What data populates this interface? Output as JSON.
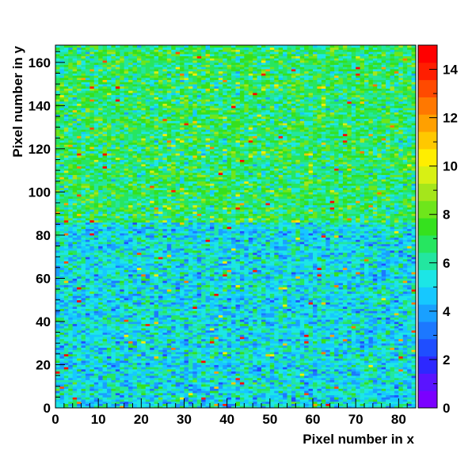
{
  "chart_data": {
    "type": "heatmap",
    "title": "",
    "xlabel": "Pixel number in x",
    "ylabel": "Pixel number in y",
    "x_range": [
      0,
      84
    ],
    "y_range": [
      0,
      168
    ],
    "x_bins": 84,
    "y_bins": 168,
    "x_ticks": [
      0,
      10,
      20,
      30,
      40,
      50,
      60,
      70,
      80
    ],
    "y_ticks": [
      0,
      20,
      40,
      60,
      80,
      100,
      120,
      140,
      160
    ],
    "z_range": [
      0,
      15
    ],
    "colorbar_ticks": [
      0,
      2,
      4,
      6,
      8,
      10,
      12,
      14
    ],
    "palette": [
      "#7b00ff",
      "#5a14ff",
      "#2d28ff",
      "#1f4eff",
      "#1c78ff",
      "#19a0ff",
      "#16c8ff",
      "#1ce6e6",
      "#23e6a0",
      "#26e660",
      "#35e11e",
      "#6ee61b",
      "#a5e61b",
      "#d8f014",
      "#ffee00",
      "#ffc800",
      "#ffa000",
      "#ff7800",
      "#ff4a00",
      "#ff1e00",
      "#ff0000"
    ],
    "regions": [
      {
        "y_from": 0,
        "y_to": 86,
        "mean_value": 5.2
      },
      {
        "y_from": 86,
        "y_to": 168,
        "mean_value": 6.8
      }
    ],
    "grid": false,
    "legend": "colorbar-right"
  }
}
